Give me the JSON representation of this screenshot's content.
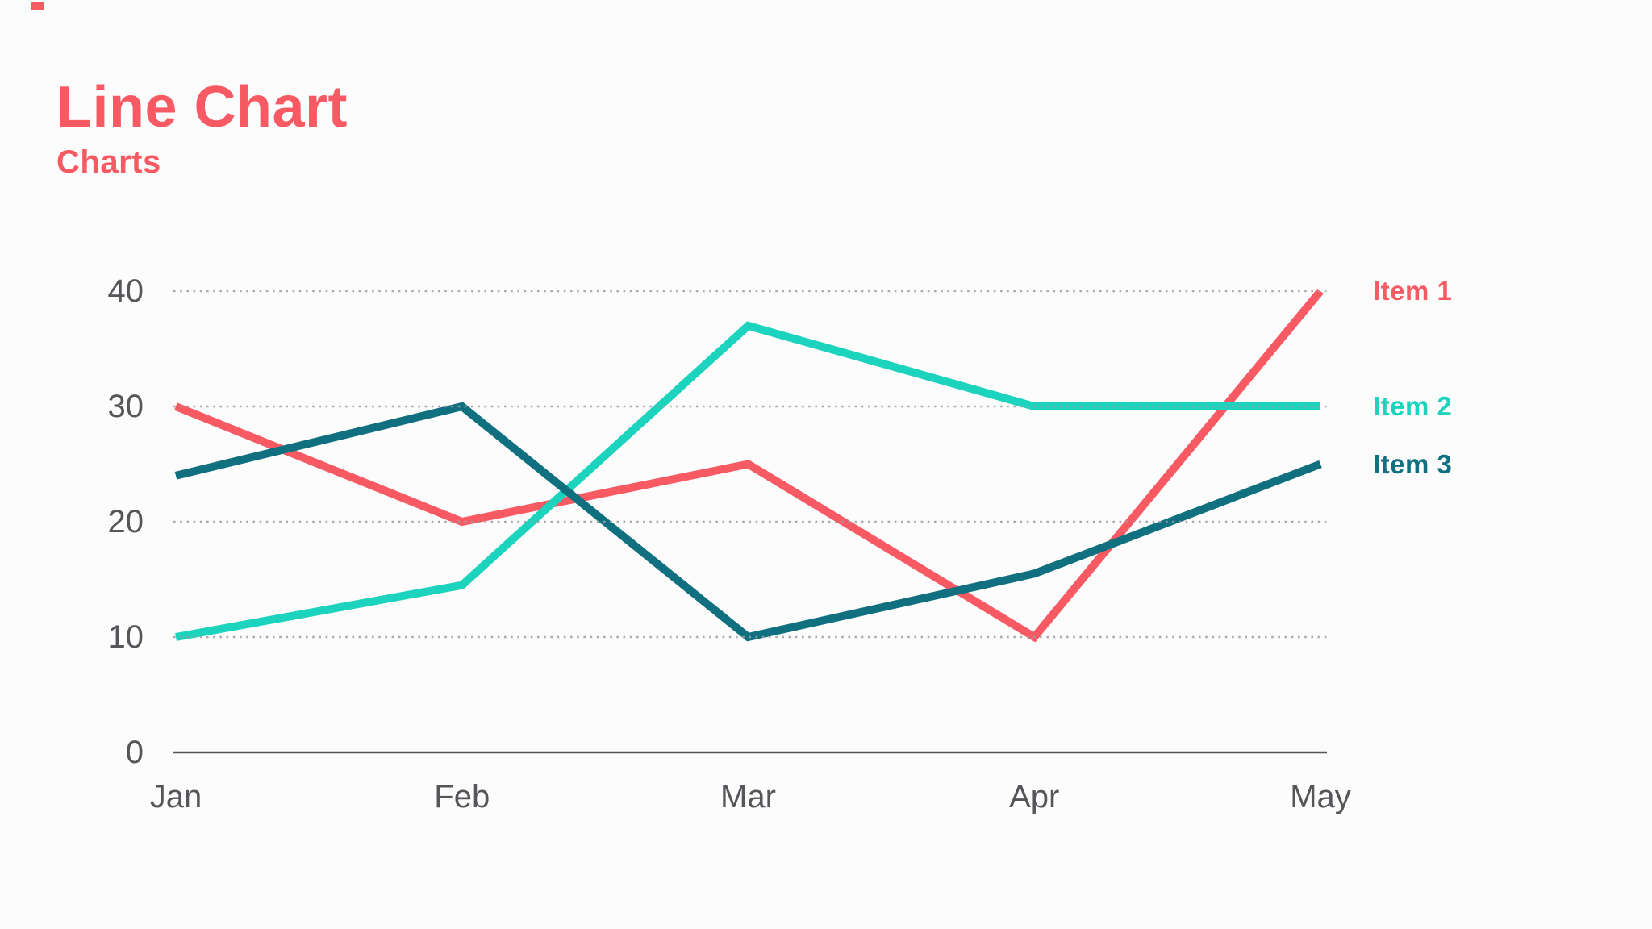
{
  "header": {
    "title": "Line Chart",
    "subtitle": "Charts"
  },
  "colors": {
    "accent": "#F85A64",
    "background": "#FCFCFC",
    "axis_text": "#55565A",
    "axis_line": "#55565A",
    "gridline": "#9E9EA2"
  },
  "chart_data": {
    "type": "line",
    "title": "Line Chart",
    "subtitle": "Charts",
    "categories": [
      "Jan",
      "Feb",
      "Mar",
      "Apr",
      "May"
    ],
    "series": [
      {
        "name": "Item 1",
        "color": "#F85A64",
        "values": [
          30,
          20,
          25,
          10,
          40
        ]
      },
      {
        "name": "Item 2",
        "color": "#1CD3BE",
        "values": [
          10,
          14.5,
          37,
          30,
          30
        ]
      },
      {
        "name": "Item 3",
        "color": "#11707F",
        "values": [
          24,
          30,
          10,
          15.5,
          25
        ]
      }
    ],
    "y_ticks": [
      0,
      10,
      20,
      30,
      40
    ],
    "ylim": [
      0,
      40
    ],
    "grid": "horizontal-dotted",
    "gridline_color": "#9E9EA2",
    "axis_color": "#55565A",
    "legend_position": "right-of-line-endpoints",
    "line_width": 10
  }
}
